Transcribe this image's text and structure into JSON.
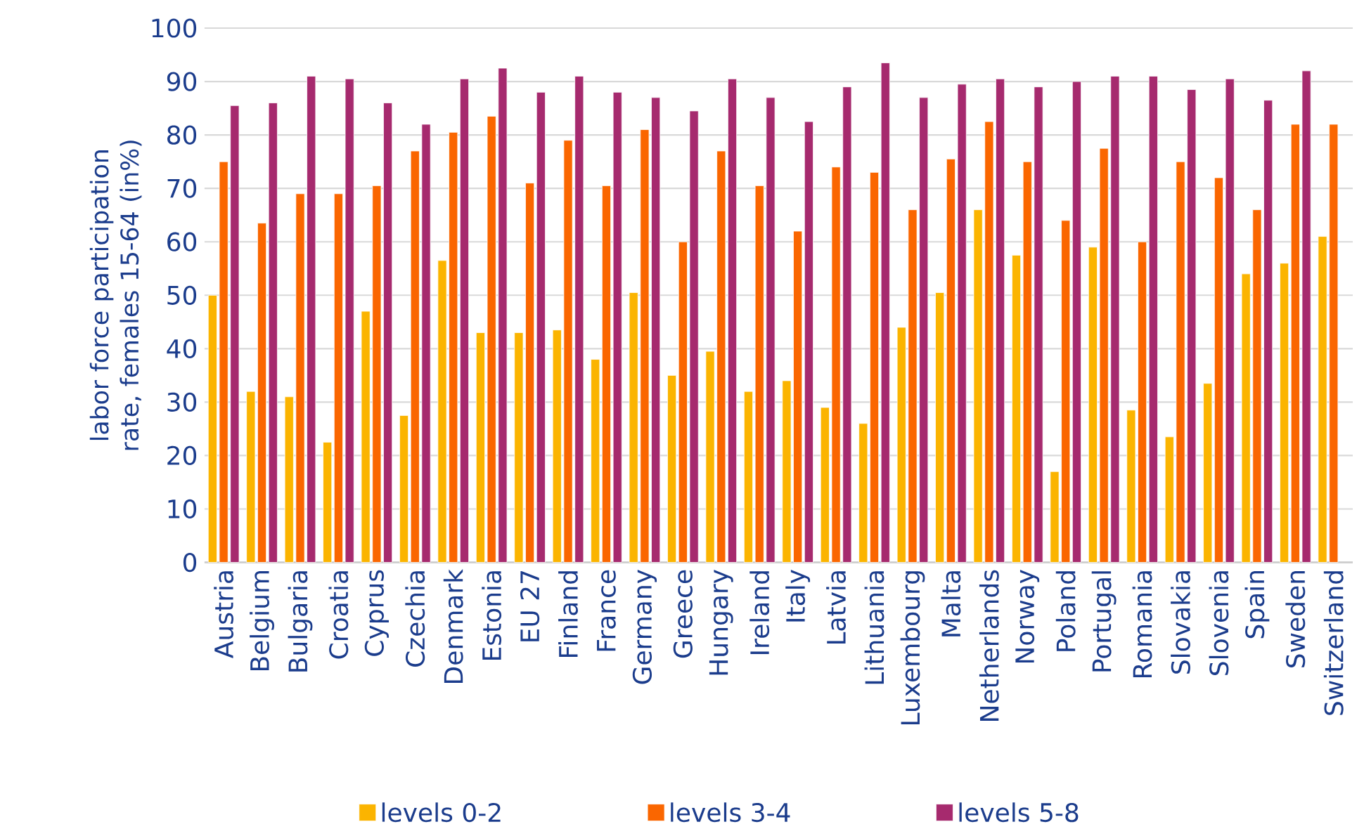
{
  "chart_data": {
    "type": "bar",
    "ylabel": "labor force participation rate, females 15-64 (in%)",
    "categories": [
      "Austria",
      "Belgium",
      "Bulgaria",
      "Croatia",
      "Cyprus",
      "Czechia",
      "Denmark",
      "Estonia",
      "EU 27",
      "Finland",
      "France",
      "Germany",
      "Greece",
      "Hungary",
      "Ireland",
      "Italy",
      "Latvia",
      "Lithuania",
      "Luxembourg",
      "Malta",
      "Netherlands",
      "Norway",
      "Poland",
      "Portugal",
      "Romania",
      "Slovakia",
      "Slovenia",
      "Spain",
      "Sweden",
      "Switzerland"
    ],
    "series": [
      {
        "name": "levels 0-2",
        "color": "#fbb400",
        "values": [
          50,
          32,
          31,
          22.5,
          47,
          27.5,
          56.5,
          43,
          43,
          43.5,
          38,
          50.5,
          35,
          39.5,
          32,
          34,
          29,
          26,
          44,
          50.5,
          66,
          57.5,
          17,
          59,
          28.5,
          23.5,
          33.5,
          54,
          56,
          61
        ]
      },
      {
        "name": "levels 3-4",
        "color": "#fa6600",
        "values": [
          75,
          63.5,
          69,
          69,
          70.5,
          77,
          80.5,
          83.5,
          71,
          79,
          70.5,
          81,
          60,
          77,
          70.5,
          62,
          74,
          73,
          66,
          75.5,
          82.5,
          75,
          64,
          77.5,
          60,
          75,
          72,
          66,
          82,
          82
        ]
      },
      {
        "name": "levels 5-8",
        "color": "#a62a6e",
        "values": [
          85.5,
          86,
          91,
          90.5,
          86,
          82,
          90.5,
          92.5,
          88,
          91,
          88,
          87,
          84.5,
          90.5,
          87,
          82.5,
          89,
          93.5,
          87,
          89.5,
          90.5,
          89,
          90,
          91,
          91,
          88.5,
          90.5,
          86.5,
          92,
          null
        ]
      }
    ],
    "ylim": [
      0,
      100
    ],
    "yticks": [
      0,
      10,
      20,
      30,
      40,
      50,
      60,
      70,
      80,
      90,
      100
    ],
    "grid": "y",
    "legend": "bottom"
  }
}
